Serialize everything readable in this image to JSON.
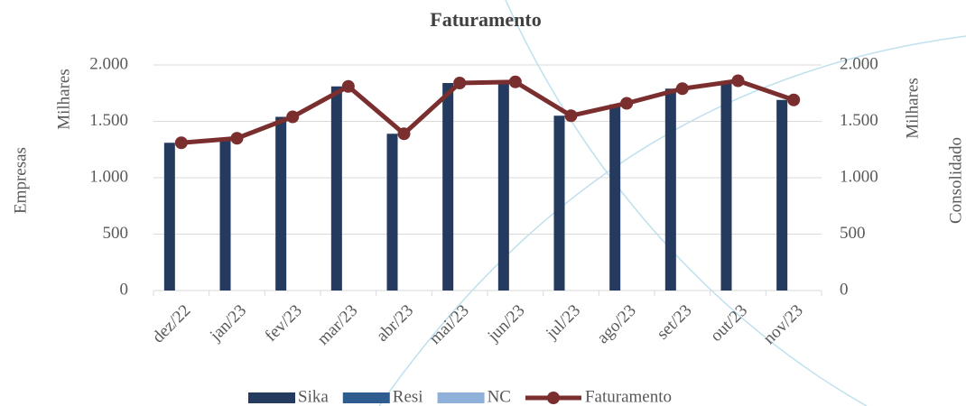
{
  "chart_data": {
    "type": "bar",
    "title": "Faturamento",
    "y_axis_title": "Empresas",
    "y_display_unit": "Milhares",
    "y2_axis_title": "Consolidado",
    "y2_display_unit": "Milhares",
    "categories": [
      "dez/22",
      "jan/23",
      "fev/23",
      "mar/23",
      "abr/23",
      "mai/23",
      "jun/23",
      "jul/23",
      "ago/23",
      "set/23",
      "out/23",
      "nov/23"
    ],
    "series": [
      {
        "name": "Sika",
        "type": "bar",
        "color": "#243a5e",
        "values": [
          1310,
          1340,
          1540,
          1810,
          1390,
          1840,
          1850,
          1550,
          1650,
          1790,
          1860,
          1690
        ]
      },
      {
        "name": "Resi",
        "type": "bar",
        "color": "#2e5c8f",
        "values": [
          null,
          null,
          null,
          null,
          null,
          null,
          null,
          null,
          null,
          null,
          null,
          null
        ]
      },
      {
        "name": "NC",
        "type": "bar",
        "color": "#8fb0d8",
        "values": [
          null,
          null,
          null,
          null,
          null,
          null,
          null,
          null,
          null,
          null,
          null,
          null
        ]
      },
      {
        "name": "Faturamento",
        "type": "line",
        "axis": "y2",
        "color": "#7b2e2e",
        "values": [
          1310,
          1350,
          1540,
          1810,
          1390,
          1840,
          1850,
          1550,
          1660,
          1790,
          1860,
          1690
        ]
      }
    ],
    "ylim": [
      0,
      2000
    ],
    "yticks": [
      0,
      {
        "value": 500,
        "label": "500"
      },
      {
        "value": 1000,
        "label": "1.000"
      },
      {
        "value": 1500,
        "label": "1.500"
      },
      {
        "value": 2000,
        "label": "2.000"
      }
    ],
    "y2lim": [
      0,
      2000
    ],
    "y2ticks": [
      0,
      {
        "value": 500,
        "label": "500"
      },
      {
        "value": 1000,
        "label": "1.000"
      },
      {
        "value": 1500,
        "label": "1.500"
      },
      {
        "value": 2000,
        "label": "2.000"
      }
    ],
    "grid": true,
    "legend": "bottom"
  }
}
